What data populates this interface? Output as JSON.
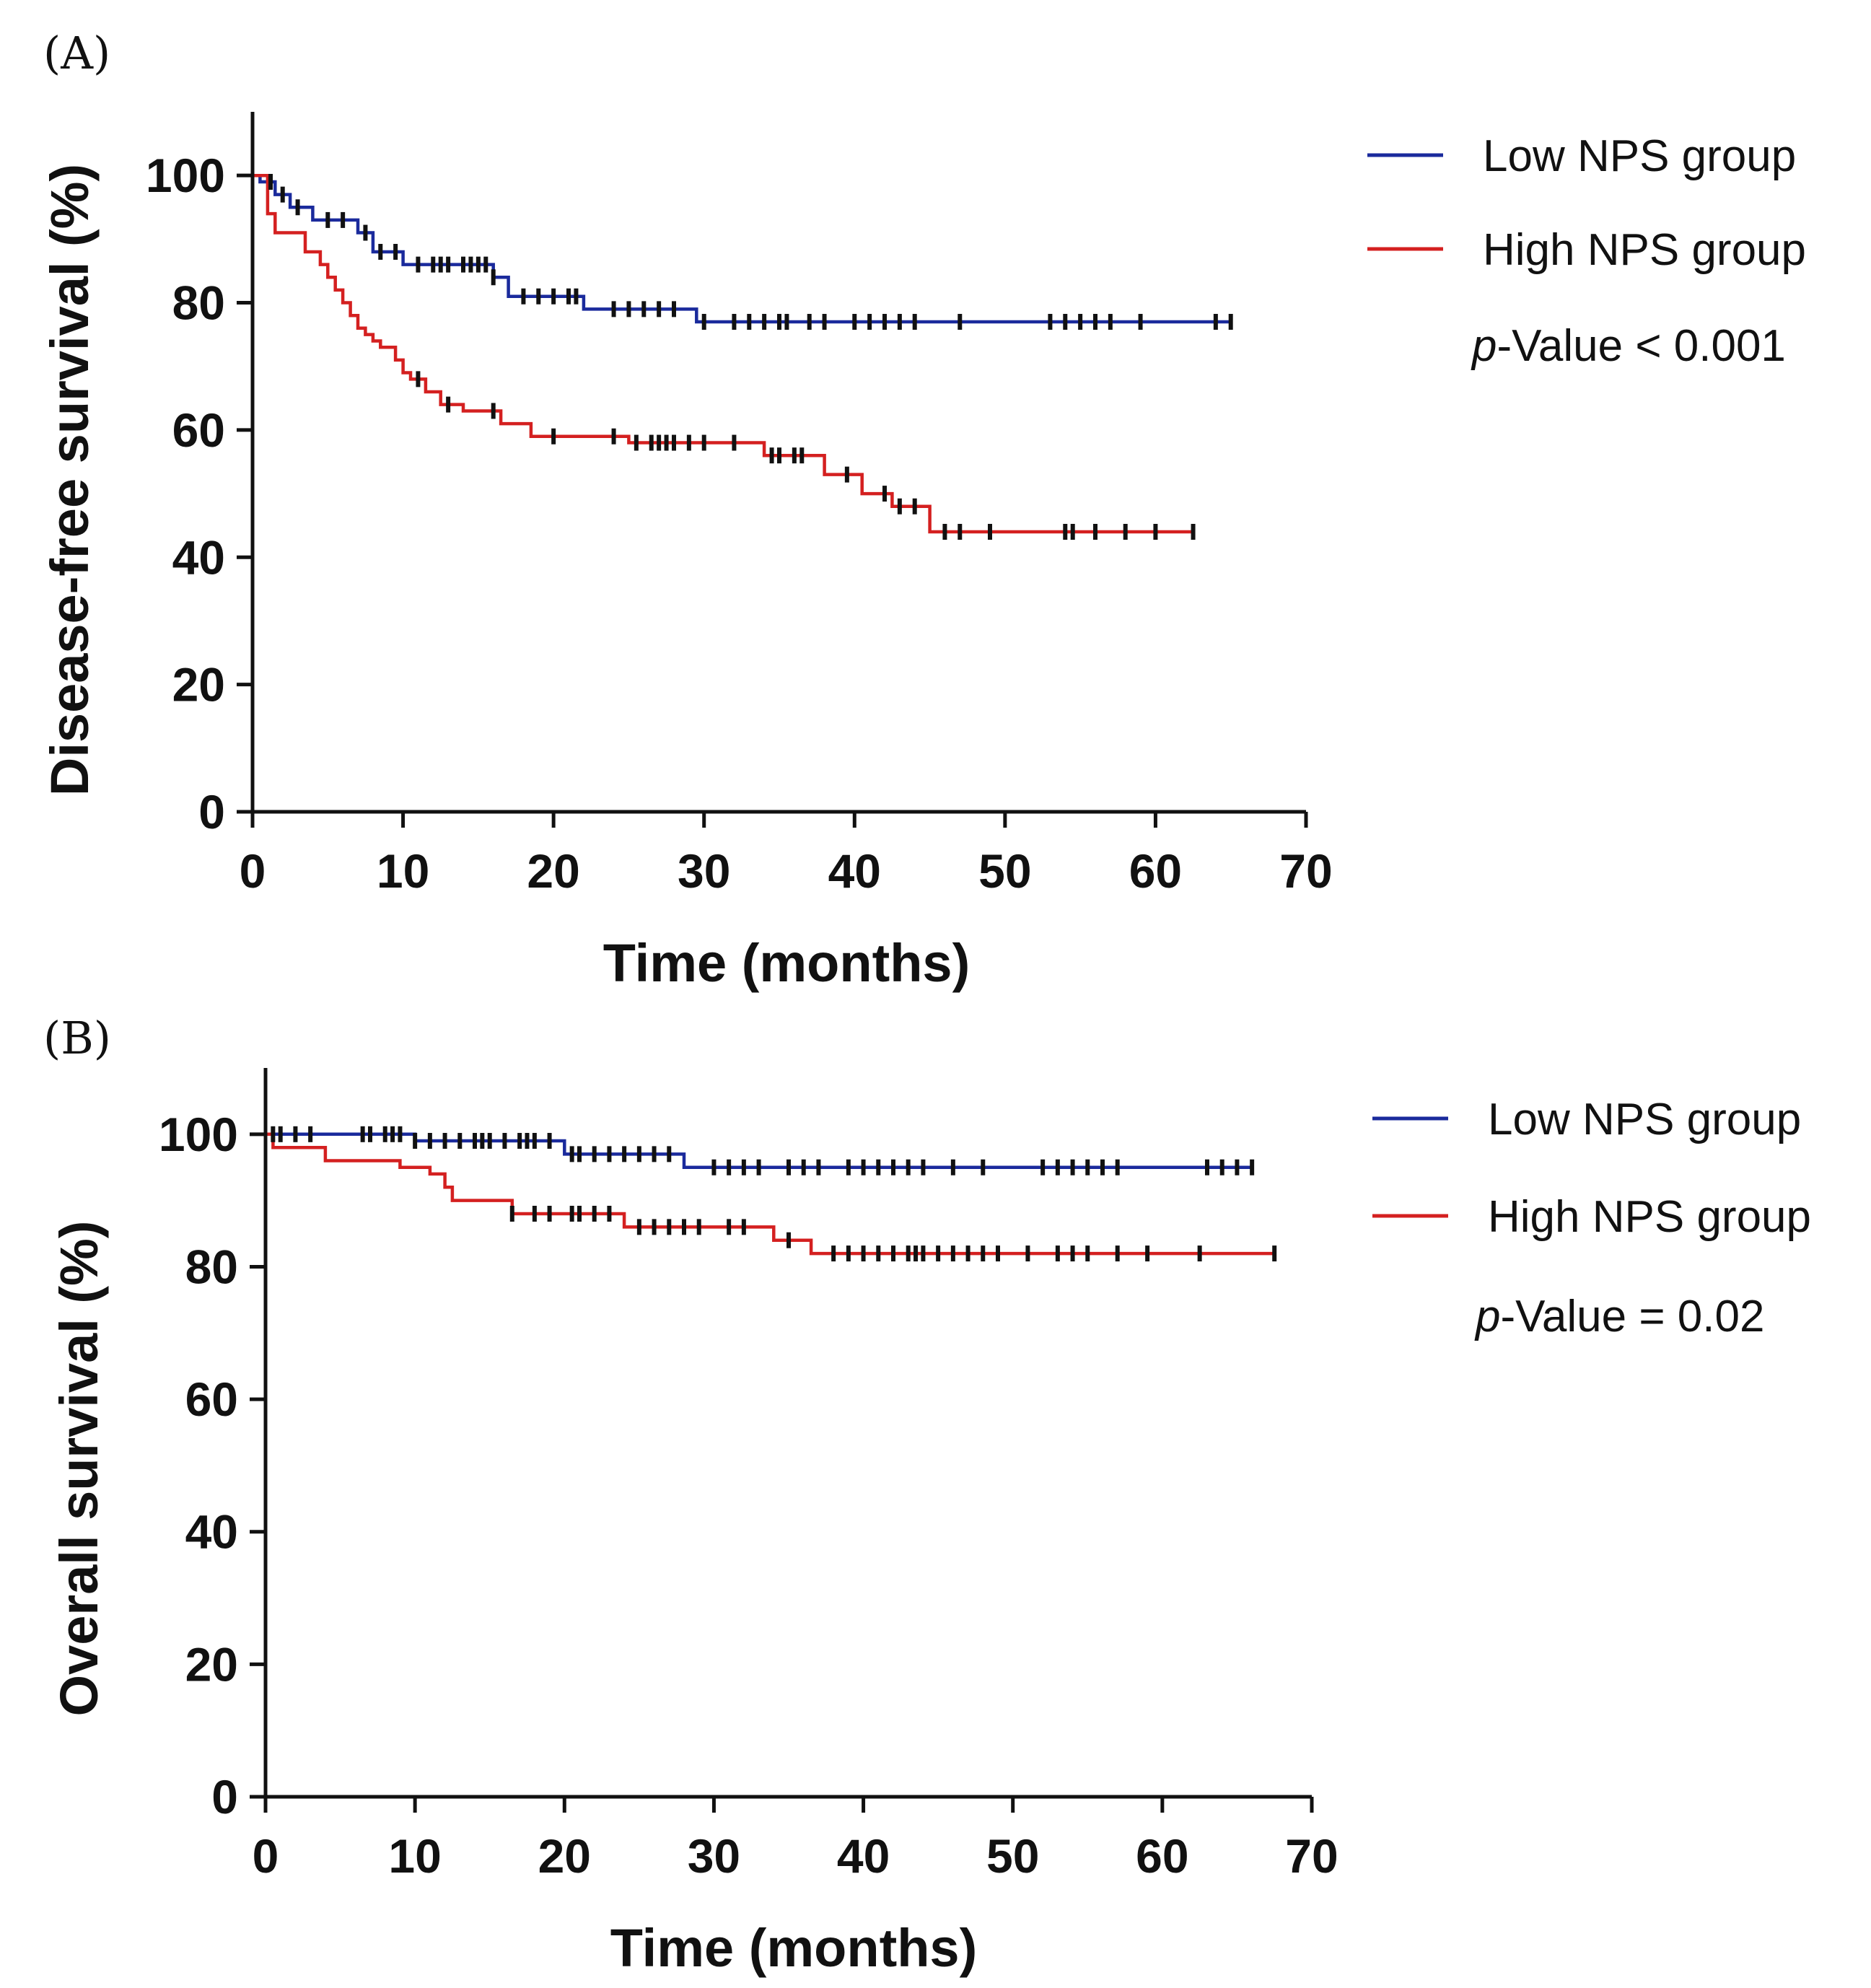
{
  "chart_data": [
    {
      "type": "line",
      "subtype": "kaplan-meier",
      "panel_label": "(A)",
      "title": "",
      "xlabel": "Time (months)",
      "ylabel": "Disease-free survival (%)",
      "xlim": [
        0,
        70
      ],
      "ylim": [
        0,
        110
      ],
      "xticks": [
        "0",
        "10",
        "20",
        "30",
        "40",
        "50",
        "60",
        "70"
      ],
      "yticks": [
        "0",
        "20",
        "40",
        "60",
        "80",
        "100"
      ],
      "legend_position": "top-right",
      "annotation": {
        "prefix": "p",
        "rest": "-Value < 0.001"
      },
      "series": [
        {
          "name": "Low NPS group",
          "color": "#1a2a9c",
          "x": [
            0,
            0.5,
            1.5,
            2.5,
            4,
            7,
            8,
            10,
            13,
            16,
            17,
            22,
            29.5,
            65
          ],
          "y": [
            100,
            99,
            97,
            95,
            93,
            91,
            88,
            86,
            86,
            84,
            81,
            79,
            77,
            77
          ],
          "censored": [
            1.2,
            2,
            3,
            5,
            6,
            7.5,
            8.5,
            9.5,
            11,
            12,
            12.5,
            13,
            14,
            14.5,
            15,
            15.5,
            16,
            18,
            19,
            20,
            21,
            21.5,
            24,
            25,
            26,
            27,
            28,
            30,
            32,
            33,
            34,
            35,
            35.5,
            37,
            38,
            40,
            41,
            42,
            43,
            44,
            47,
            53,
            54,
            55,
            56,
            57,
            59,
            64,
            65
          ]
        },
        {
          "name": "High NPS group",
          "color": "#d42020",
          "x": [
            0,
            1,
            1.5,
            3.5,
            4.5,
            5,
            5.5,
            6,
            6.5,
            7,
            7.5,
            8,
            8.5,
            9.5,
            10,
            10.5,
            11.5,
            12.5,
            14,
            16.5,
            18.5,
            25,
            34,
            38,
            40.5,
            42.5,
            45,
            62.5
          ],
          "y": [
            100,
            94,
            91,
            88,
            86,
            84,
            82,
            80,
            78,
            76,
            75,
            74,
            73,
            71,
            69,
            68,
            66,
            64,
            63,
            61,
            59,
            58,
            56,
            53,
            50,
            48,
            44,
            44
          ],
          "censored": [
            11,
            13,
            16,
            20,
            24,
            25.5,
            26.5,
            27,
            27.5,
            28,
            29,
            30,
            32,
            34.5,
            35,
            36,
            36.5,
            39.5,
            42,
            43,
            44,
            46,
            47,
            49,
            54,
            54.5,
            56,
            58,
            60,
            62.5
          ]
        }
      ]
    },
    {
      "type": "line",
      "subtype": "kaplan-meier",
      "panel_label": "(B)",
      "title": "",
      "xlabel": "Time (months)",
      "ylabel": "Overall survival (%)",
      "xlim": [
        0,
        70
      ],
      "ylim": [
        0,
        110
      ],
      "xticks": [
        "0",
        "10",
        "20",
        "30",
        "40",
        "50",
        "60",
        "70"
      ],
      "yticks": [
        "0",
        "20",
        "40",
        "60",
        "80",
        "100"
      ],
      "legend_position": "top-right",
      "annotation": {
        "prefix": "p",
        "rest": "-Value = 0.02"
      },
      "series": [
        {
          "name": "Low NPS group",
          "color": "#1a2a9c",
          "x": [
            0,
            10,
            20,
            28,
            66
          ],
          "y": [
            100,
            99,
            97,
            95,
            95
          ],
          "censored": [
            0.5,
            1,
            2,
            3,
            6.5,
            7,
            8,
            8.5,
            9,
            10,
            11,
            12,
            13,
            14,
            14.5,
            15,
            16,
            17,
            17.5,
            18,
            19,
            20.5,
            21,
            22,
            23,
            24,
            25,
            26,
            27,
            30,
            31,
            32,
            33,
            35,
            36,
            37,
            39,
            40,
            41,
            42,
            43,
            44,
            46,
            48,
            52,
            53,
            54,
            55,
            56,
            57,
            63,
            64,
            65,
            66
          ]
        },
        {
          "name": "High NPS group",
          "color": "#d42020",
          "x": [
            0,
            0.5,
            4,
            9,
            11,
            12,
            12.5,
            16.5,
            24,
            34,
            36.5,
            67.5
          ],
          "y": [
            100,
            98,
            96,
            95,
            94,
            92,
            90,
            88,
            86,
            84,
            82,
            82
          ],
          "censored": [
            16.5,
            18,
            19,
            20.5,
            21,
            22,
            23,
            25,
            26,
            27,
            28,
            29,
            31,
            32,
            35,
            38,
            39,
            40,
            41,
            42,
            43,
            43.5,
            44,
            45,
            46,
            47,
            48,
            49,
            51,
            53,
            54,
            55,
            57,
            59,
            62.5,
            67.5
          ]
        }
      ]
    }
  ]
}
